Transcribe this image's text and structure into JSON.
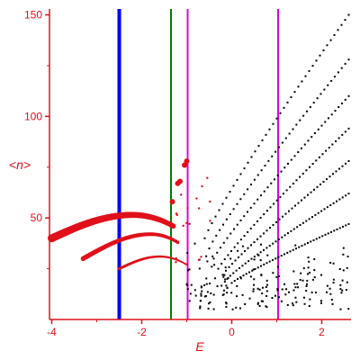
{
  "chart_data": {
    "type": "scatter",
    "title": "",
    "xlabel": "E",
    "ylabel": "<n>",
    "xlim": [
      -4.05,
      2.65
    ],
    "ylim": [
      0,
      152
    ],
    "x_ticks": [
      -4,
      -2,
      0,
      2
    ],
    "y_ticks": [
      50,
      100,
      150
    ],
    "grid": false,
    "colors": {
      "axis": "#e0101a",
      "black_points": "#000000",
      "red_points": "#e0101a"
    },
    "vertical_lines": [
      {
        "x": -2.5,
        "color": "#0000ff",
        "width": "thick"
      },
      {
        "x": -1.35,
        "color": "#008000",
        "width": "normal"
      },
      {
        "x": -0.98,
        "color": "#e000e0",
        "width": "normal"
      },
      {
        "x": 1.03,
        "color": "#e000e0",
        "width": "normal"
      }
    ],
    "red_series": [
      {
        "e_start": -4.0,
        "e_end": -1.3,
        "n_start": 40,
        "n_peak": 51.5,
        "e_peak": -2.2,
        "n_end": 46,
        "marker": "large"
      },
      {
        "e_start": -3.3,
        "e_end": -1.2,
        "n_start": 30,
        "n_peak": 42,
        "e_peak": -1.8,
        "n_end": 38,
        "marker": "medium"
      },
      {
        "e_start": -2.5,
        "e_end": -1.0,
        "n_start": 25,
        "n_peak": 31,
        "e_peak": -1.6,
        "n_end": 27,
        "marker": "small"
      }
    ],
    "red_cluster_points": [
      {
        "x": -1.32,
        "y": 58
      },
      {
        "x": -1.2,
        "y": 67
      },
      {
        "x": -1.15,
        "y": 68
      },
      {
        "x": -1.05,
        "y": 76
      },
      {
        "x": -1.0,
        "y": 78
      }
    ],
    "black_series": [
      {
        "e_start": -0.6,
        "e_end": 2.6,
        "n_start": 40,
        "n_end": 150
      },
      {
        "e_start": -0.5,
        "e_end": 2.6,
        "n_start": 35,
        "n_end": 128
      },
      {
        "e_start": -0.4,
        "e_end": 2.6,
        "n_start": 30,
        "n_end": 110
      },
      {
        "e_start": -0.3,
        "e_end": 2.6,
        "n_start": 25,
        "n_end": 94
      },
      {
        "e_start": -0.2,
        "e_end": 2.6,
        "n_start": 22,
        "n_end": 78
      },
      {
        "e_start": -0.1,
        "e_end": 2.6,
        "n_start": 20,
        "n_end": 62
      },
      {
        "e_start": 0.0,
        "e_end": 2.6,
        "n_start": 18,
        "n_end": 47
      }
    ],
    "black_scatter_region": {
      "e_min": -1.0,
      "e_max": 2.6,
      "n_min": 5,
      "n_max": 40
    }
  }
}
